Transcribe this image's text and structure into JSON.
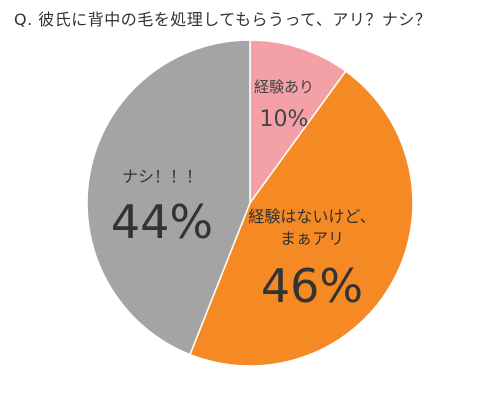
{
  "chart_data": {
    "type": "pie",
    "title": "Q. 彼氏に背中の毛を処理してもらうって、アリ？ナシ？",
    "start_angle_deg": 0,
    "direction": "clockwise",
    "slices": [
      {
        "label_lines": [
          "経験あり"
        ],
        "value": 10,
        "value_label": "10%",
        "color": "#f3a1a6",
        "text_color": "#444444",
        "label_size": "small"
      },
      {
        "label_lines": [
          "経験はないけど、",
          "まぁアリ"
        ],
        "value": 46,
        "value_label": "46%",
        "color": "#f58a24",
        "text_color": "#333333",
        "label_size": "large"
      },
      {
        "label_lines": [
          "ナシ！！！"
        ],
        "value": 44,
        "value_label": "44%",
        "color": "#a4a4a4",
        "text_color": "#333333",
        "label_size": "large"
      }
    ]
  }
}
